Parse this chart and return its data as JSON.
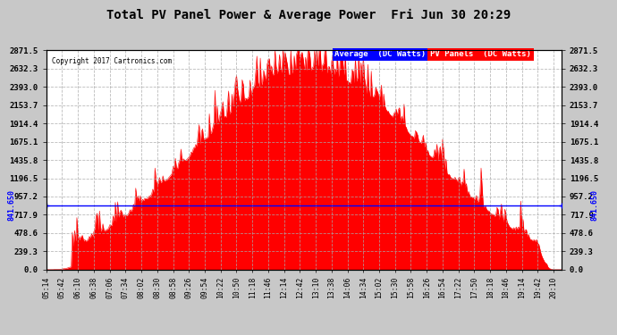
{
  "title": "Total PV Panel Power & Average Power  Fri Jun 30 20:29",
  "copyright": "Copyright 2017 Cartronics.com",
  "legend_avg_label": "Average  (DC Watts)",
  "legend_pv_label": "PV Panels  (DC Watts)",
  "avg_value": 841.65,
  "y_max": 2871.5,
  "y_min": 0.0,
  "y_ticks": [
    0.0,
    239.3,
    478.6,
    717.9,
    957.2,
    1196.5,
    1435.8,
    1675.1,
    1914.4,
    2153.7,
    2393.0,
    2632.3,
    2871.5
  ],
  "plot_bg_color": "#ffffff",
  "grid_color": "#aaaaaa",
  "fill_color": "#ff0000",
  "avg_line_color": "#0000ff",
  "legend_avg_bg": "#0000ff",
  "legend_pv_bg": "#ff0000",
  "legend_text_color": "#ffffff",
  "avg_label_side": "841.650",
  "figure_bg": "#c8c8c8"
}
